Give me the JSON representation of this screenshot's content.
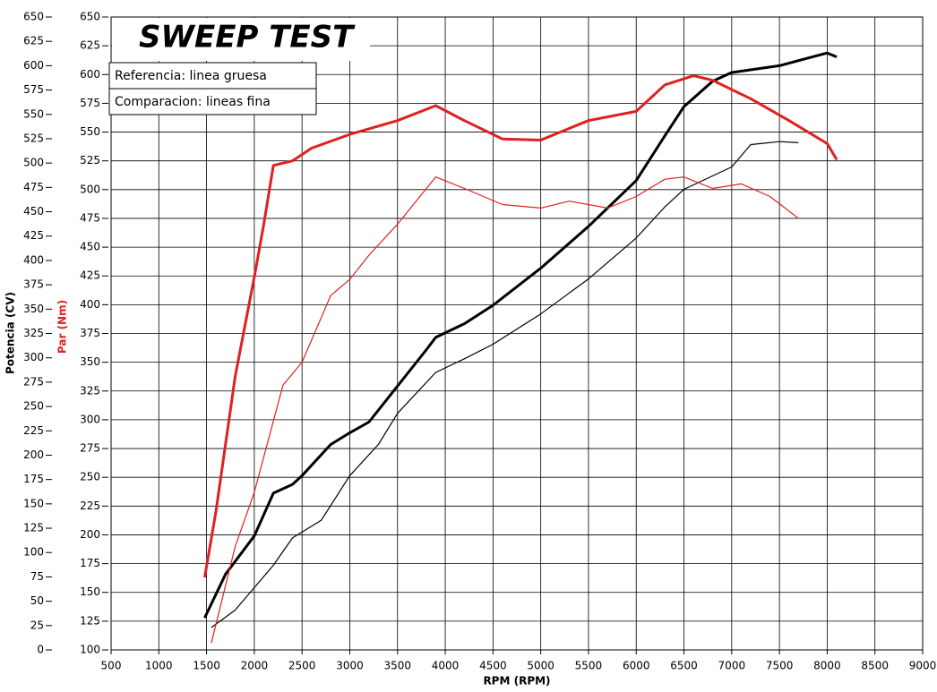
{
  "chart_data": {
    "type": "line",
    "title": "SWEEP TEST",
    "legend_notes": [
      "Referencia: linea gruesa",
      "Comparacion: lineas fina"
    ],
    "xlabel": "RPM (RPM)",
    "ylabel": "Potencia (CV)",
    "y2label": "Par (Nm)",
    "xlim": [
      500,
      9000
    ],
    "xticks": [
      500,
      1000,
      1500,
      2000,
      2500,
      3000,
      3500,
      4000,
      4500,
      5000,
      5500,
      6000,
      6500,
      7000,
      7500,
      8000,
      8500,
      9000
    ],
    "ylim": [
      0,
      650
    ],
    "yticks": [
      0,
      25,
      50,
      75,
      100,
      125,
      150,
      175,
      200,
      225,
      250,
      275,
      300,
      325,
      350,
      375,
      400,
      425,
      450,
      475,
      500,
      525,
      550,
      575,
      600,
      625,
      650
    ],
    "y2lim": [
      100,
      650
    ],
    "y2ticks": [
      100,
      125,
      150,
      175,
      200,
      225,
      250,
      275,
      300,
      325,
      350,
      375,
      400,
      425,
      450,
      475,
      500,
      525,
      550,
      575,
      600,
      625,
      650
    ],
    "grid": true,
    "series": [
      {
        "color": "#000000",
        "width": "thick",
        "axis": "y",
        "x": [
          1480,
          1700,
          2000,
          2200,
          2400,
          2500,
          2800,
          3000,
          3200,
          3500,
          3800,
          3900,
          4200,
          4500,
          5000,
          5500,
          6000,
          6300,
          6500,
          6800,
          7000,
          7500,
          8000,
          8100
        ],
        "values": [
          33,
          78,
          117,
          161,
          170,
          179,
          211,
          223,
          234,
          271,
          308,
          321,
          335,
          354,
          392,
          435,
          482,
          528,
          558,
          584,
          593,
          600,
          613,
          609
        ]
      },
      {
        "color": "#000000",
        "width": "thin",
        "axis": "y",
        "x": [
          1550,
          1800,
          2000,
          2200,
          2400,
          2700,
          3000,
          3300,
          3500,
          3900,
          4200,
          4500,
          5000,
          5500,
          6000,
          6300,
          6500,
          7000,
          7200,
          7500,
          7700
        ],
        "values": [
          23,
          41,
          64,
          87,
          115,
          133,
          179,
          211,
          243,
          285,
          299,
          314,
          345,
          381,
          423,
          455,
          473,
          496,
          519,
          522,
          521
        ]
      },
      {
        "color": "#e02020",
        "width": "thick",
        "axis": "y2",
        "x": [
          1480,
          1600,
          1800,
          2000,
          2100,
          2200,
          2400,
          2600,
          3000,
          3500,
          3900,
          4200,
          4600,
          5000,
          5500,
          6000,
          6300,
          6600,
          6800,
          7200,
          7600,
          8000,
          8100
        ],
        "values": [
          163,
          221,
          338,
          424,
          470,
          521,
          525,
          536,
          548,
          560,
          573,
          560,
          544,
          543,
          560,
          568,
          591,
          599,
          595,
          579,
          560,
          540,
          526
        ]
      },
      {
        "color": "#e02020",
        "width": "thin",
        "axis": "y2",
        "x": [
          1550,
          1800,
          2000,
          2300,
          2500,
          2800,
          3000,
          3200,
          3500,
          3900,
          4200,
          4600,
          5000,
          5300,
          5700,
          6000,
          6300,
          6500,
          6800,
          7100,
          7400,
          7700
        ],
        "values": [
          106,
          190,
          237,
          330,
          350,
          408,
          422,
          443,
          470,
          511,
          501,
          487,
          484,
          490,
          484,
          494,
          509,
          511,
          501,
          505,
          494,
          475
        ]
      }
    ]
  }
}
